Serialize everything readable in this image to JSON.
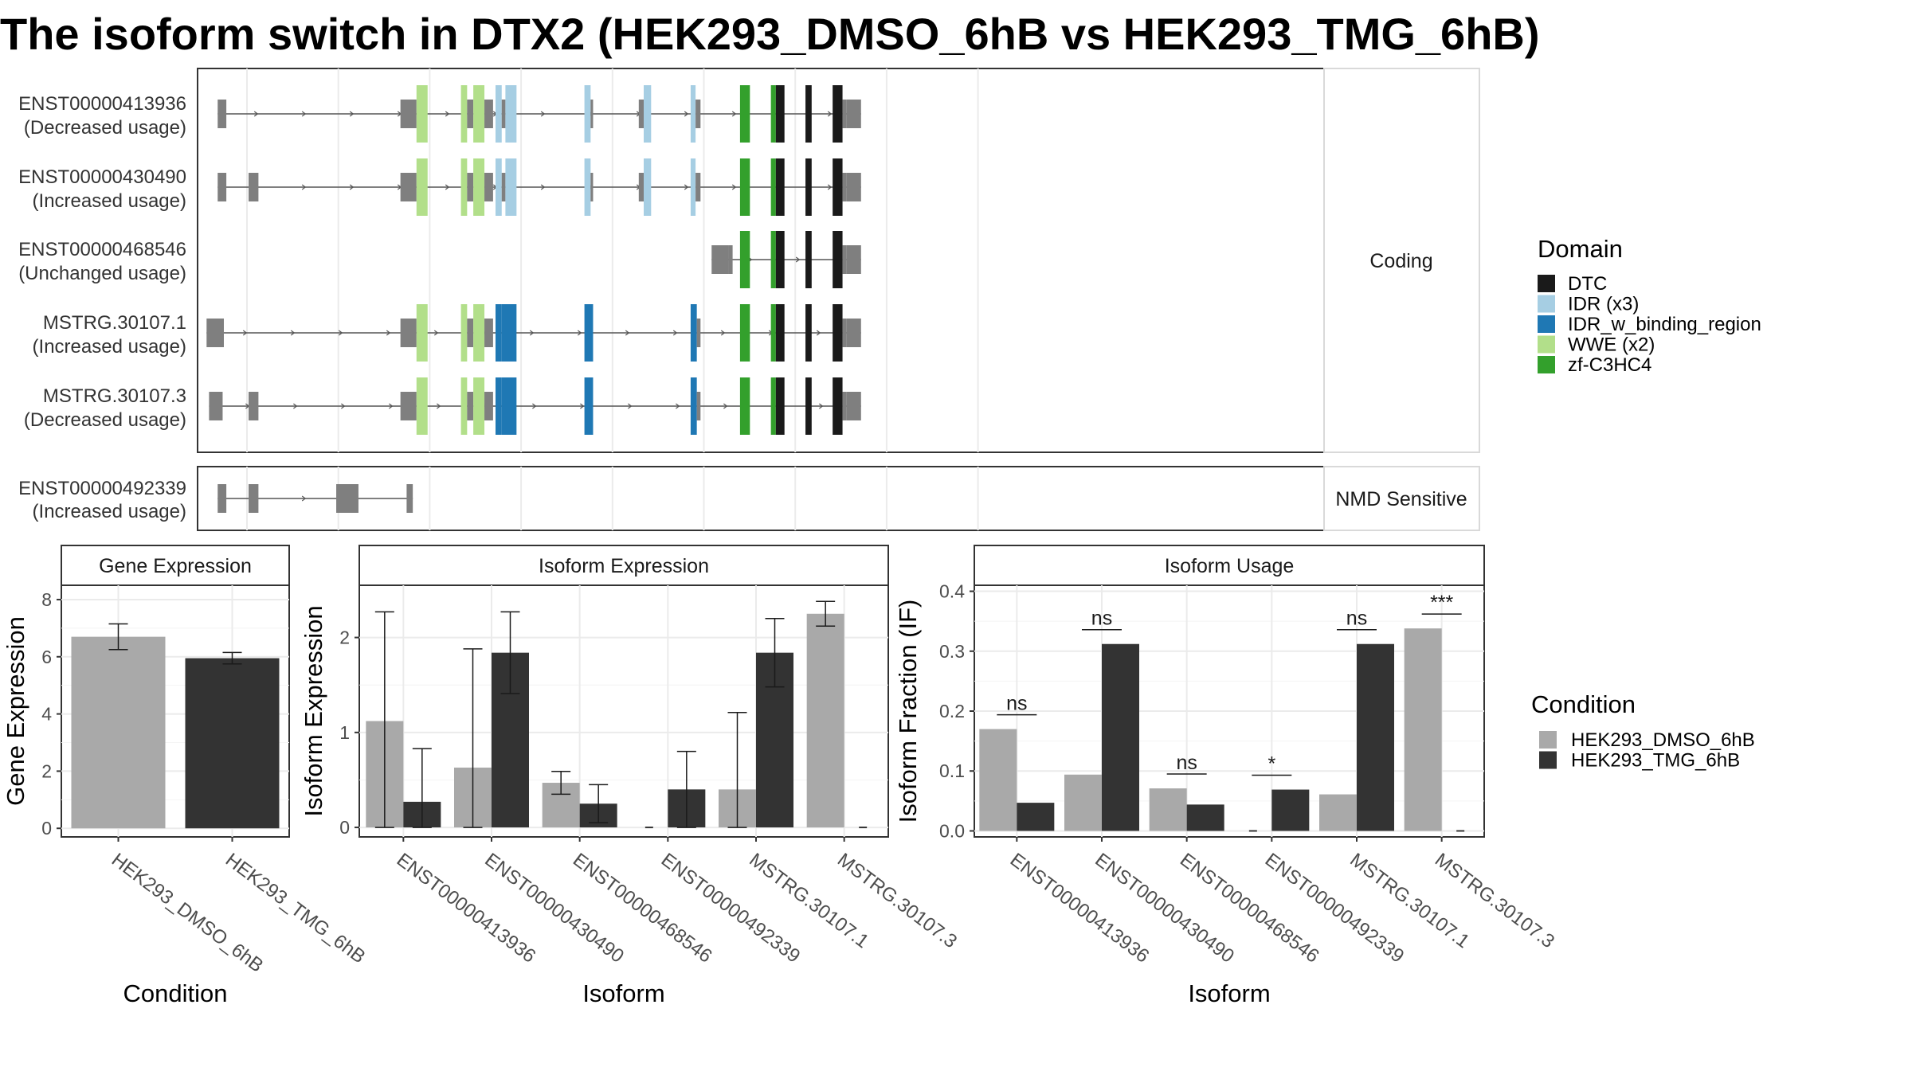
{
  "title": "The isoform switch in DTX2 (HEK293_DMSO_6hB vs HEK293_TMG_6hB)",
  "colors": {
    "dmso": "#a9a9a9",
    "tmg": "#333333",
    "intron": "#555555",
    "utr": "#7f7f7f",
    "grid": "#ebebeb",
    "strip_bg": "#ffffff",
    "DTC": "#1a1a1a",
    "IDR (x3)": "#a6cee3",
    "IDR_w_binding_region": "#1f78b4",
    "WWE (x2)": "#b2df8a",
    "zf-C3HC4": "#33a02c"
  },
  "structure": {
    "facets": [
      "Coding",
      "NMD Sensitive"
    ],
    "isoforms": [
      {
        "id": "ENST00000413936",
        "usage": "(Decreased usage)",
        "facet": "Coding"
      },
      {
        "id": "ENST00000430490",
        "usage": "(Increased usage)",
        "facet": "Coding"
      },
      {
        "id": "ENST00000468546",
        "usage": "(Unchanged usage)",
        "facet": "Coding"
      },
      {
        "id": "MSTRG.30107.1",
        "usage": "(Increased usage)",
        "facet": "Coding"
      },
      {
        "id": "MSTRG.30107.3",
        "usage": "(Decreased usage)",
        "facet": "Coding"
      },
      {
        "id": "ENST00000492339",
        "usage": "(Increased usage)",
        "facet": "NMD Sensitive"
      }
    ]
  },
  "legend_domain": {
    "title": "Domain",
    "entries": [
      "DTC",
      "IDR (x3)",
      "IDR_w_binding_region",
      "WWE (x2)",
      "zf-C3HC4"
    ]
  },
  "legend_condition": {
    "title": "Condition",
    "entries": [
      "HEK293_DMSO_6hB",
      "HEK293_TMG_6hB"
    ]
  },
  "chart_data": [
    {
      "type": "bar",
      "panel": "Gene Expression",
      "xlabel": "Condition",
      "ylabel": "Gene Expression",
      "ylim": [
        -0.3,
        8.5
      ],
      "yticks": [
        0,
        2,
        4,
        6,
        8
      ],
      "categories": [
        "HEK293_DMSO_6hB",
        "HEK293_TMG_6hB"
      ],
      "values": [
        6.7,
        5.95
      ],
      "error": [
        [
          6.25,
          7.15
        ],
        [
          5.75,
          6.15
        ]
      ]
    },
    {
      "type": "bar",
      "panel": "Isoform Expression",
      "xlabel": "Isoform",
      "ylabel": "Isoform Expression",
      "ylim": [
        -0.1,
        2.55
      ],
      "yticks": [
        0,
        1,
        2
      ],
      "categories": [
        "ENST00000413936",
        "ENST00000430490",
        "ENST00000468546",
        "ENST00000492339",
        "MSTRG.30107.1",
        "MSTRG.30107.3"
      ],
      "series": [
        {
          "name": "HEK293_DMSO_6hB",
          "values": [
            1.12,
            0.63,
            0.47,
            0.0,
            0.4,
            2.25
          ],
          "error": [
            [
              0.0,
              2.27
            ],
            [
              0.0,
              1.88
            ],
            [
              0.35,
              0.59
            ],
            null,
            [
              0.0,
              1.21
            ],
            [
              2.12,
              2.38
            ]
          ]
        },
        {
          "name": "HEK293_TMG_6hB",
          "values": [
            0.27,
            1.84,
            0.25,
            0.4,
            1.84,
            0.0
          ],
          "error": [
            [
              0.0,
              0.83
            ],
            [
              1.41,
              2.27
            ],
            [
              0.05,
              0.45
            ],
            [
              0.0,
              0.8
            ],
            [
              1.48,
              2.2
            ],
            null
          ]
        }
      ]
    },
    {
      "type": "bar",
      "panel": "Isoform Usage",
      "xlabel": "Isoform",
      "ylabel": "Isoform Fraction (IF)",
      "ylim": [
        -0.01,
        0.41
      ],
      "yticks": [
        0.0,
        0.1,
        0.2,
        0.3,
        0.4
      ],
      "categories": [
        "ENST00000413936",
        "ENST00000430490",
        "ENST00000468546",
        "ENST00000492339",
        "MSTRG.30107.1",
        "MSTRG.30107.3"
      ],
      "series": [
        {
          "name": "HEK293_DMSO_6hB",
          "values": [
            0.17,
            0.094,
            0.071,
            0.0,
            0.061,
            0.338
          ]
        },
        {
          "name": "HEK293_TMG_6hB",
          "values": [
            0.047,
            0.312,
            0.044,
            0.069,
            0.312,
            0.0
          ]
        }
      ],
      "significance": [
        "ns",
        "ns",
        "ns",
        "*",
        "ns",
        "***"
      ]
    }
  ]
}
